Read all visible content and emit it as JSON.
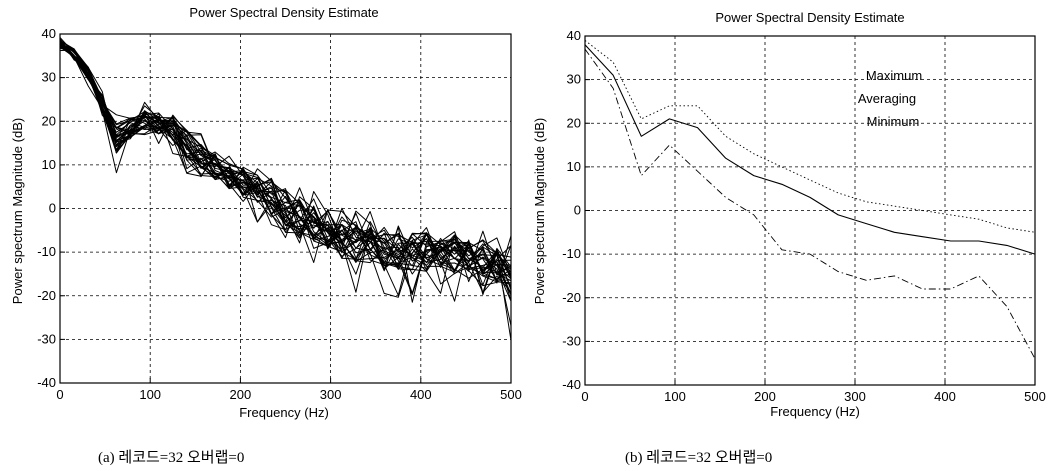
{
  "captions": {
    "a": "(a) 레코드=32 오버랩=0",
    "b": "(b) 레코드=32 오버랩=0"
  },
  "colors": {
    "axes": "#000000",
    "grid": "#000000",
    "line": "#000000",
    "background": "#ffffff"
  },
  "chart_data": [
    {
      "type": "line",
      "title": "Power Spectral Density Estimate",
      "xlabel": "Frequency (Hz)",
      "ylabel": "Power spectrum Magnitude (dB)",
      "xlim": [
        0,
        500
      ],
      "ylim": [
        -40,
        40
      ],
      "xticks": [
        0,
        100,
        200,
        300,
        400,
        500
      ],
      "yticks": [
        -40,
        -30,
        -20,
        -10,
        0,
        10,
        20,
        30,
        40
      ],
      "grid": true,
      "x": [
        0,
        15.6,
        31.3,
        46.9,
        62.5,
        78.1,
        93.8,
        109.4,
        125,
        140.6,
        156.3,
        171.9,
        187.5,
        203.1,
        218.8,
        234.4,
        250,
        265.6,
        281.3,
        296.9,
        312.5,
        328.1,
        343.8,
        359.4,
        375,
        390.6,
        406.3,
        421.9,
        437.5,
        453.1,
        468.8,
        484.4,
        500
      ],
      "series_count": 32,
      "overlaid_records": {
        "mean": [
          38,
          35,
          31,
          24,
          17,
          19,
          20,
          20,
          19,
          15,
          12,
          10,
          8,
          7,
          6,
          5,
          3,
          1,
          -1,
          -2,
          -3,
          -4,
          -5,
          -6,
          -6,
          -7,
          -7,
          -7,
          -8,
          -8,
          -9,
          -9,
          -10
        ],
        "max": [
          40,
          38,
          34,
          28,
          22,
          23,
          25,
          24,
          24,
          21,
          18,
          16,
          13,
          12,
          10,
          9,
          7,
          5,
          4,
          3,
          2,
          0,
          0,
          -2,
          -2,
          -4,
          -4,
          -5,
          -4,
          -5,
          -5,
          -6,
          -6
        ],
        "min": [
          36,
          33,
          28,
          20,
          8,
          13,
          16,
          14,
          12,
          7,
          5,
          3,
          1,
          -2,
          -4,
          -10,
          -14,
          -16,
          -14,
          -17,
          -20,
          -22,
          -20,
          -23,
          -22,
          -24,
          -22,
          -20,
          -22,
          -21,
          -22,
          -26,
          -35
        ]
      }
    },
    {
      "type": "line",
      "title": "Power Spectral Density Estimate",
      "xlabel": "Frequency (Hz)",
      "ylabel": "Power spectrum Magnitude (dB)",
      "xlim": [
        0,
        500
      ],
      "ylim": [
        -40,
        40
      ],
      "xticks": [
        0,
        100,
        200,
        300,
        400,
        500
      ],
      "yticks": [
        -40,
        -30,
        -20,
        -10,
        0,
        10,
        20,
        30,
        40
      ],
      "grid": true,
      "legend": [
        "Maximum",
        "Averaging",
        "Minimum"
      ],
      "legend_position": "top-center",
      "x": [
        0,
        31.3,
        62.5,
        93.8,
        125,
        156.3,
        187.5,
        218.8,
        250,
        281.3,
        312.5,
        343.8,
        375,
        406.3,
        437.5,
        468.8,
        500
      ],
      "series": [
        {
          "name": "Maximum",
          "style": "dotted",
          "values": [
            39,
            34,
            21,
            24,
            24,
            17,
            13,
            10,
            7,
            4,
            2,
            1,
            0,
            -1,
            -2,
            -4,
            -5
          ]
        },
        {
          "name": "Averaging",
          "style": "solid",
          "values": [
            38,
            31,
            17,
            21,
            19,
            12,
            8,
            6,
            3,
            -1,
            -3,
            -5,
            -6,
            -7,
            -7,
            -8,
            -10
          ]
        },
        {
          "name": "Minimum",
          "style": "dash-dot",
          "values": [
            37,
            28,
            8,
            15,
            9,
            3,
            -1,
            -9,
            -10,
            -14,
            -16,
            -15,
            -18,
            -18,
            -15,
            -22,
            -34
          ]
        }
      ]
    }
  ]
}
